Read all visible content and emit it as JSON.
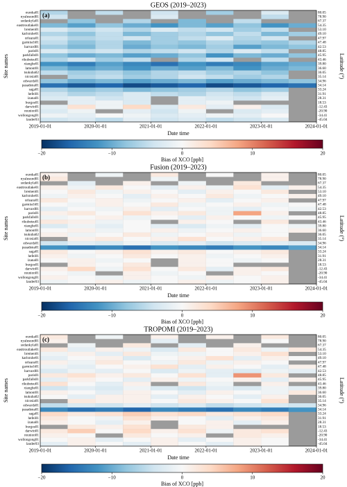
{
  "chart_data": [
    {
      "type": "heatmap",
      "title": "GEOS (2019–2023)",
      "panel_label": "(a)",
      "x_label": "Date time",
      "y_label": "Site names",
      "y2_label": "Latitude (°)",
      "categories": [
        "eureka01",
        "nyalesund01",
        "sodankyla01",
        "easttroutlake01",
        "bremen01",
        "karlsruhe01",
        "orleans01",
        "garmisch01",
        "harvard01",
        "paris01",
        "parkfalls01",
        "rikubetsu01",
        "xianghe01",
        "lamont01",
        "tsukuba02",
        "nicosia01",
        "edwards01",
        "pasadena01",
        "saga01",
        "hefei01",
        "izana01",
        "burgos01",
        "darwin01",
        "reunion01",
        "wollongong01",
        "lauder03"
      ],
      "y2_labels": [
        "80.05",
        "78.90",
        "67.37",
        "54.35",
        "53.10",
        "49.10",
        "47.97",
        "47.48",
        "42.53",
        "48.85",
        "45.95",
        "43.46",
        "39.80",
        "36.60",
        "36.05",
        "35.14",
        "34.96",
        "34.14",
        "33.24",
        "31.91",
        "28.31",
        "18.53",
        "-12.43",
        "-20.90",
        "-34.41",
        "-45.04"
      ],
      "x": [
        "2019-01-01",
        "2019-07-01",
        "2020-01-01",
        "2020-07-01",
        "2021-01-01",
        "2021-07-01",
        "2022-01-01",
        "2022-07-01",
        "2023-01-01",
        "2023-07-01"
      ],
      "xlim": [
        "2019-01-01",
        "2024-01-01"
      ],
      "xticks": [
        "2019-01-01",
        "2020-01-01",
        "2021-01-01",
        "2022-01-01",
        "2023-01-01",
        "2024-01-01"
      ],
      "z": [
        [
          -6,
          null,
          -5,
          null,
          -4,
          null,
          -7,
          null,
          -3,
          null
        ],
        [
          -4,
          null,
          null,
          null,
          -3,
          null,
          null,
          null,
          -5,
          null
        ],
        [
          null,
          -8,
          null,
          -6,
          null,
          -9,
          null,
          -5,
          null,
          null
        ],
        [
          -9,
          -11,
          -8,
          -10,
          -12,
          -9,
          -11,
          -8,
          -12,
          -10
        ],
        [
          -3,
          -5,
          -4,
          -6,
          -3,
          -5,
          -4,
          -7,
          -5,
          null
        ],
        [
          -6,
          -8,
          -5,
          -9,
          -7,
          -6,
          -8,
          -5,
          -9,
          -7
        ],
        [
          -4,
          -6,
          -5,
          -4,
          -7,
          -5,
          -3,
          -6,
          -4,
          null
        ],
        [
          -5,
          -8,
          -6,
          -9,
          -7,
          -8,
          -6,
          -7,
          -8,
          -6
        ],
        [
          -7,
          -9,
          -6,
          -10,
          -8,
          -9,
          -7,
          -11,
          -9,
          -8
        ],
        [
          -3,
          -5,
          -4,
          -6,
          -5,
          -4,
          -6,
          -3,
          -5,
          null
        ],
        [
          -8,
          -10,
          -9,
          -11,
          -10,
          -8,
          -12,
          -9,
          -10,
          -8
        ],
        [
          -6,
          -4,
          -7,
          -5,
          null,
          -6,
          -4,
          null,
          -5,
          null
        ],
        [
          -12,
          -14,
          -11,
          -13,
          -15,
          -12,
          -14,
          -13,
          -11,
          -10
        ],
        [
          -9,
          -11,
          -10,
          -12,
          -10,
          -11,
          -9,
          -12,
          -10,
          -9
        ],
        [
          -5,
          -7,
          -6,
          -8,
          -6,
          -5,
          -7,
          -6,
          -8,
          null
        ],
        [
          null,
          -6,
          -5,
          -7,
          -6,
          -4,
          -5,
          -7,
          -6,
          null
        ],
        [
          -8,
          -10,
          -9,
          -11,
          -10,
          -9,
          -11,
          -10,
          -9,
          -8
        ],
        [
          -15,
          -17,
          -16,
          -18,
          -17,
          -16,
          -18,
          -17,
          -16,
          -15
        ],
        [
          -6,
          -8,
          -7,
          -9,
          -8,
          -7,
          -6,
          -8,
          -7,
          null
        ],
        [
          -4,
          -6,
          -5,
          -3,
          -5,
          -6,
          -4,
          -5,
          -3,
          null
        ],
        [
          -3,
          -2,
          -4,
          -3,
          null,
          -2,
          -3,
          -4,
          -2,
          null
        ],
        [
          null,
          -2,
          -1,
          -3,
          null,
          -2,
          -1,
          null,
          null,
          null
        ],
        [
          -2,
          3,
          -1,
          4,
          -3,
          2,
          -2,
          1,
          -3,
          null
        ],
        [
          -3,
          -1,
          null,
          -2,
          -4,
          -1,
          null,
          -3,
          -2,
          null
        ],
        [
          -1,
          -2,
          0,
          -1,
          -3,
          -2,
          -1,
          -2,
          0,
          null
        ],
        [
          -4,
          -3,
          -5,
          -2,
          -4,
          -3,
          -5,
          -4,
          -3,
          null
        ]
      ],
      "colorbar": {
        "label": "Bias of XCO [ppb]",
        "lim": [
          -20,
          20
        ],
        "ticks": [
          {
            "value": -20,
            "label": "−20"
          },
          {
            "value": -10,
            "label": "−10"
          },
          0,
          10,
          20
        ]
      }
    },
    {
      "type": "heatmap",
      "title": "Fusion (2019–2023)",
      "panel_label": "(b)",
      "x_label": "Date time",
      "y_label": "Site names",
      "y2_label": "Latitude (°)",
      "categories": [
        "eureka01",
        "nyalesund01",
        "sodankyla01",
        "easttroutlake01",
        "bremen01",
        "karlsruhe01",
        "orleans01",
        "garmisch01",
        "harvard01",
        "paris01",
        "parkfalls01",
        "rikubetsu01",
        "xianghe01",
        "lamont01",
        "tsukuba02",
        "nicosia01",
        "edwards01",
        "pasadena01",
        "saga01",
        "hefei01",
        "izana01",
        "burgos01",
        "darwin01",
        "reunion01",
        "wollongong01",
        "lauder03"
      ],
      "y2_labels": [
        "80.05",
        "78.90",
        "67.37",
        "54.35",
        "53.10",
        "49.10",
        "47.97",
        "47.48",
        "42.53",
        "48.85",
        "45.95",
        "43.46",
        "39.80",
        "36.60",
        "36.05",
        "35.14",
        "34.96",
        "34.14",
        "33.24",
        "31.91",
        "28.31",
        "18.53",
        "-12.43",
        "-20.90",
        "-34.41",
        "-45.04"
      ],
      "x": [
        "2019-01-01",
        "2019-07-01",
        "2020-01-01",
        "2020-07-01",
        "2021-01-01",
        "2021-07-01",
        "2022-01-01",
        "2022-07-01",
        "2023-01-01",
        "2023-07-01"
      ],
      "xlim": [
        "2019-01-01",
        "2024-01-01"
      ],
      "xticks": [
        "2019-01-01",
        "2020-01-01",
        "2021-01-01",
        "2022-01-01",
        "2023-01-01",
        "2024-01-01"
      ],
      "z": [
        [
          1,
          null,
          -1,
          null,
          2,
          null,
          0,
          null,
          1,
          null
        ],
        [
          2,
          null,
          null,
          null,
          -1,
          null,
          null,
          null,
          1,
          null
        ],
        [
          null,
          -2,
          null,
          1,
          null,
          -1,
          null,
          2,
          null,
          null
        ],
        [
          1,
          -1,
          2,
          0,
          -2,
          1,
          -1,
          3,
          -2,
          1
        ],
        [
          0,
          2,
          -1,
          1,
          0,
          -2,
          1,
          0,
          2,
          null
        ],
        [
          -1,
          1,
          0,
          -2,
          1,
          0,
          2,
          -1,
          0,
          1
        ],
        [
          2,
          0,
          1,
          -1,
          0,
          1,
          -2,
          0,
          1,
          null
        ],
        [
          0,
          -1,
          1,
          0,
          2,
          -1,
          0,
          1,
          -1,
          0
        ],
        [
          -2,
          0,
          -1,
          1,
          -2,
          0,
          -1,
          -2,
          0,
          -1
        ],
        [
          1,
          2,
          0,
          3,
          1,
          2,
          -1,
          8,
          1,
          null
        ],
        [
          -1,
          0,
          1,
          -1,
          0,
          -2,
          1,
          0,
          -1,
          0
        ],
        [
          2,
          1,
          -1,
          0,
          null,
          1,
          0,
          null,
          2,
          null
        ],
        [
          -3,
          -1,
          -2,
          0,
          -2,
          -3,
          -1,
          -2,
          0,
          -1
        ],
        [
          0,
          1,
          -1,
          0,
          1,
          -1,
          0,
          1,
          0,
          1
        ],
        [
          1,
          -1,
          0,
          2,
          -1,
          0,
          1,
          -1,
          0,
          null
        ],
        [
          null,
          1,
          2,
          0,
          1,
          3,
          0,
          1,
          2,
          null
        ],
        [
          -4,
          -2,
          -3,
          -1,
          -3,
          -2,
          -4,
          -3,
          -2,
          -3
        ],
        [
          -12,
          -14,
          -13,
          -15,
          -12,
          -13,
          -14,
          -12,
          -13,
          -11
        ],
        [
          2,
          0,
          1,
          3,
          1,
          2,
          0,
          1,
          2,
          null
        ],
        [
          1,
          -1,
          0,
          2,
          0,
          1,
          -1,
          0,
          1,
          null
        ],
        [
          0,
          1,
          -1,
          0,
          null,
          1,
          0,
          -1,
          0,
          null
        ],
        [
          null,
          1,
          0,
          2,
          null,
          1,
          0,
          null,
          null,
          null
        ],
        [
          1,
          4,
          -1,
          3,
          0,
          2,
          -2,
          1,
          2,
          null
        ],
        [
          0,
          -1,
          null,
          1,
          -1,
          0,
          null,
          1,
          0,
          null
        ],
        [
          1,
          0,
          -1,
          1,
          0,
          -1,
          1,
          0,
          1,
          null
        ],
        [
          -1,
          0,
          1,
          -1,
          0,
          1,
          -1,
          0,
          1,
          null
        ]
      ],
      "colorbar": {
        "label": "Bias of XCO [ppb]",
        "lim": [
          -20,
          20
        ],
        "ticks": [
          {
            "value": -20,
            "label": "−20"
          },
          {
            "value": -10,
            "label": "−10"
          },
          0,
          10,
          20
        ]
      }
    },
    {
      "type": "heatmap",
      "title": "TROPOMI (2019–2023)",
      "panel_label": "(c)",
      "x_label": "Date time",
      "y_label": "Site names",
      "y2_label": "Latitude (°)",
      "categories": [
        "eureka01",
        "nyalesund01",
        "sodankyla01",
        "easttroutlake01",
        "bremen01",
        "karlsruhe01",
        "orleans01",
        "garmisch01",
        "harvard01",
        "paris01",
        "parkfalls01",
        "rikubetsu01",
        "xianghe01",
        "lamont01",
        "tsukuba02",
        "nicosia01",
        "edwards01",
        "pasadena01",
        "saga01",
        "hefei01",
        "izana01",
        "burgos01",
        "darwin01",
        "reunion01",
        "wollongong01",
        "lauder03"
      ],
      "y2_labels": [
        "80.05",
        "78.90",
        "67.37",
        "54.35",
        "53.10",
        "49.10",
        "47.97",
        "47.48",
        "42.53",
        "48.85",
        "45.95",
        "43.46",
        "39.80",
        "36.60",
        "36.05",
        "35.14",
        "34.96",
        "34.14",
        "33.24",
        "31.91",
        "28.31",
        "18.53",
        "-12.43",
        "-20.90",
        "-34.41",
        "-45.04"
      ],
      "x": [
        "2019-01-01",
        "2019-07-01",
        "2020-01-01",
        "2020-07-01",
        "2021-01-01",
        "2021-07-01",
        "2022-01-01",
        "2022-07-01",
        "2023-01-01",
        "2023-07-01"
      ],
      "xlim": [
        "2019-01-01",
        "2024-01-01"
      ],
      "xticks": [
        "2019-01-01",
        "2020-01-01",
        "2021-01-01",
        "2022-01-01",
        "2023-01-01",
        "2024-01-01"
      ],
      "z": [
        [
          2,
          null,
          -1,
          null,
          1,
          null,
          1,
          null,
          2,
          null
        ],
        [
          1,
          null,
          null,
          null,
          -2,
          null,
          null,
          null,
          0,
          null
        ],
        [
          null,
          -1,
          null,
          2,
          null,
          -2,
          null,
          1,
          null,
          null
        ],
        [
          2,
          -2,
          1,
          -1,
          -3,
          2,
          0,
          2,
          -1,
          2
        ],
        [
          -1,
          1,
          -2,
          2,
          -1,
          -1,
          0,
          1,
          3,
          null
        ],
        [
          -2,
          0,
          1,
          -3,
          0,
          1,
          3,
          -2,
          1,
          0
        ],
        [
          1,
          -1,
          2,
          0,
          -1,
          2,
          -1,
          1,
          0,
          null
        ],
        [
          -1,
          -2,
          0,
          1,
          3,
          -2,
          1,
          0,
          -2,
          1
        ],
        [
          -3,
          -1,
          -2,
          0,
          -3,
          -1,
          -2,
          -3,
          -1,
          -2
        ],
        [
          2,
          3,
          1,
          2,
          0,
          3,
          -2,
          9,
          2,
          null
        ],
        [
          -2,
          1,
          0,
          -2,
          1,
          -1,
          0,
          1,
          -2,
          1
        ],
        [
          3,
          0,
          -2,
          1,
          null,
          2,
          -1,
          null,
          1,
          null
        ],
        [
          -4,
          -2,
          -3,
          -1,
          -3,
          -4,
          -2,
          -3,
          -1,
          -2
        ],
        [
          1,
          0,
          -2,
          1,
          0,
          -2,
          1,
          0,
          -1,
          2
        ],
        [
          0,
          -2,
          1,
          1,
          -2,
          1,
          0,
          -2,
          1,
          null
        ],
        [
          null,
          2,
          1,
          1,
          0,
          2,
          1,
          0,
          3,
          null
        ],
        [
          -5,
          -3,
          -4,
          -2,
          -4,
          -3,
          -5,
          -4,
          -3,
          -4
        ],
        [
          -13,
          -15,
          -14,
          -16,
          -13,
          -14,
          -15,
          -13,
          -14,
          -12
        ],
        [
          4,
          2,
          3,
          5,
          3,
          4,
          2,
          3,
          4,
          null
        ],
        [
          2,
          0,
          -1,
          3,
          1,
          0,
          -2,
          1,
          2,
          null
        ],
        [
          1,
          0,
          -2,
          1,
          null,
          0,
          1,
          -2,
          1,
          null
        ],
        [
          null,
          2,
          1,
          3,
          null,
          2,
          1,
          null,
          null,
          null
        ],
        [
          2,
          5,
          0,
          4,
          1,
          3,
          -1,
          2,
          3,
          null
        ],
        [
          1,
          0,
          null,
          2,
          0,
          1,
          null,
          2,
          1,
          null
        ],
        [
          0,
          1,
          -2,
          0,
          1,
          -2,
          0,
          1,
          0,
          null
        ],
        [
          -2,
          1,
          0,
          -2,
          1,
          0,
          -2,
          1,
          0,
          null
        ]
      ],
      "colorbar": {
        "label": "Bias of XCO [ppb]",
        "lim": [
          -20,
          20
        ],
        "ticks": [
          {
            "value": -20,
            "label": "−20"
          },
          {
            "value": -10,
            "label": "−10"
          },
          0,
          10,
          20
        ]
      }
    }
  ],
  "colormap": [
    "#053061",
    "#2166ac",
    "#4393c3",
    "#92c5de",
    "#d1e5f0",
    "#f7f7f7",
    "#fddbc7",
    "#f4a582",
    "#d6604d",
    "#b2182b",
    "#67001f"
  ],
  "nan_color": "#9b9b9b"
}
